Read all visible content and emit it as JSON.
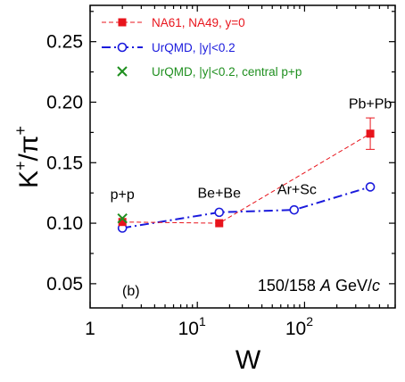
{
  "chart_data": {
    "type": "scatter",
    "xlabel": "W",
    "ylabel": {
      "base": "K",
      "sup1": "+",
      "mid": "/π",
      "sup2": "+"
    },
    "xscale": "log",
    "xlim": [
      1,
      700
    ],
    "ylim": [
      0.03,
      0.28
    ],
    "x_tick_labels": [
      {
        "value": 1,
        "label": "1"
      },
      {
        "value": 10,
        "base": "10",
        "exp": "1"
      },
      {
        "value": 100,
        "base": "10",
        "exp": "2"
      }
    ],
    "y_ticks": [
      0.05,
      0.1,
      0.15,
      0.2,
      0.25
    ],
    "y_tick_labels": [
      "0.05",
      "0.10",
      "0.15",
      "0.20",
      "0.25"
    ],
    "series": [
      {
        "name": "NA61, NA49, y=0",
        "color": "#e8141c",
        "marker": "filled-square",
        "line": "dashed",
        "x": [
          2,
          16,
          410
        ],
        "y": [
          0.101,
          0.1,
          0.174
        ],
        "err": [
          0.002,
          0.002,
          0.013
        ]
      },
      {
        "name": "UrQMD, |y|<0.2",
        "color": "#1a1adc",
        "marker": "open-circle",
        "line": "dash-dot",
        "x": [
          2,
          16,
          80,
          410
        ],
        "y": [
          0.096,
          0.109,
          0.111,
          0.13
        ]
      },
      {
        "name": "UrQMD, |y|<0.2, central p+p",
        "color": "#1f8f1f",
        "marker": "x",
        "line": "none",
        "x": [
          2
        ],
        "y": [
          0.104
        ]
      }
    ],
    "annotations": [
      {
        "text": "p+p",
        "x": 2,
        "y": 0.12
      },
      {
        "text": "Be+Be",
        "x": 16,
        "y": 0.121
      },
      {
        "text": "Ar+Sc",
        "x": 85,
        "y": 0.124
      },
      {
        "text": "Pb+Pb",
        "x": 410,
        "y": 0.195
      }
    ],
    "panel_label": "(b)",
    "energy_label": {
      "pre": "150/158 ",
      "a": "A",
      "mid": " GeV/",
      "c": "c"
    }
  }
}
